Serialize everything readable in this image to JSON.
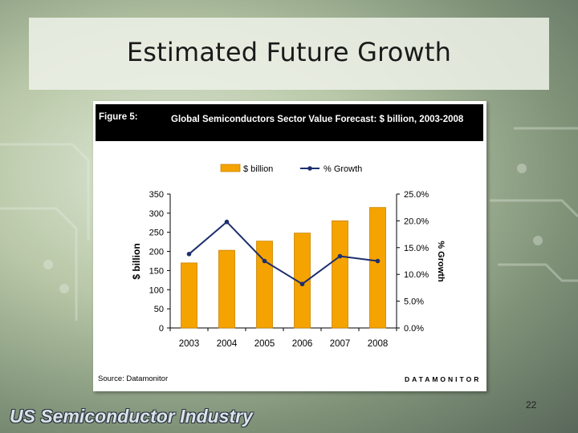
{
  "slide": {
    "title": "Estimated Future Growth",
    "page_number": "22",
    "footer_brand": "US Semiconductor Industry"
  },
  "figure": {
    "label": "Figure 5:",
    "caption": "Global Semiconductors Sector Value Forecast: $ billion, 2003-2008",
    "source": "Source: Datamonitor",
    "publisher": "DATAMONITOR"
  },
  "colors": {
    "bar": "#f5a300",
    "bar_outline": "#c98400",
    "line": "#1c2e6e",
    "axis": "#000000"
  },
  "chart_data": {
    "type": "bar",
    "categories": [
      "2003",
      "2004",
      "2005",
      "2006",
      "2007",
      "2008"
    ],
    "series": [
      {
        "name": "$ billion",
        "type": "bar",
        "axis": "left",
        "values": [
          170,
          203,
          227,
          248,
          280,
          315
        ]
      },
      {
        "name": "% Growth",
        "type": "line",
        "axis": "right",
        "values": [
          13.8,
          19.8,
          12.5,
          8.2,
          13.4,
          12.5
        ]
      }
    ],
    "ylabel": "$ billion",
    "ylabel_right": "% Growth",
    "ylim": [
      0,
      350
    ],
    "ylim_right": [
      0,
      25
    ],
    "yticks": [
      "0",
      "50",
      "100",
      "150",
      "200",
      "250",
      "300",
      "350"
    ],
    "yticks_right": [
      "0.0%",
      "5.0%",
      "10.0%",
      "15.0%",
      "20.0%",
      "25.0%"
    ],
    "legend_position": "top-center",
    "grid": false
  }
}
